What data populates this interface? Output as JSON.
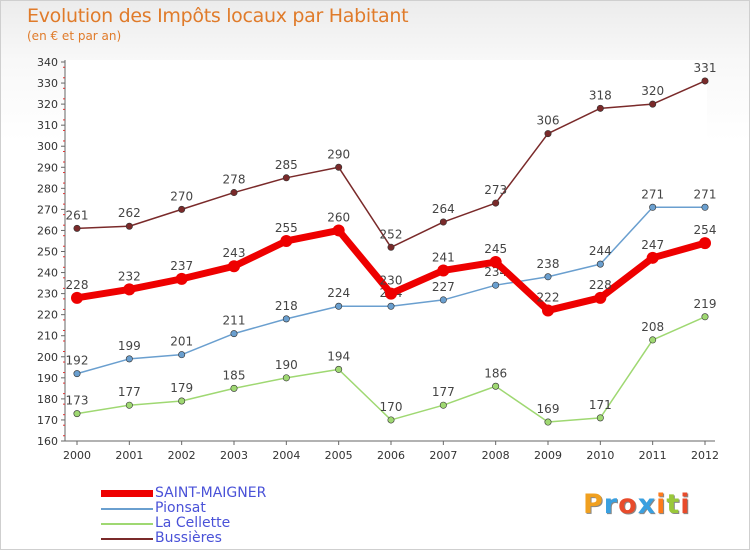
{
  "title": "Evolution des Impôts locaux par Habitant",
  "subtitle": "(en € et par an)",
  "logo_text": "Proxiti",
  "chart_data": {
    "type": "line",
    "title": "Evolution des Impôts locaux par Habitant",
    "subtitle": "(en € et par an)",
    "xlabel": "",
    "ylabel": "",
    "x": [
      "2000",
      "2001",
      "2002",
      "2003",
      "2004",
      "2005",
      "2006",
      "2007",
      "2008",
      "2009",
      "2010",
      "2011",
      "2012"
    ],
    "ylim": [
      160,
      340
    ],
    "yticks": [
      160,
      170,
      180,
      190,
      200,
      210,
      220,
      230,
      240,
      250,
      260,
      270,
      280,
      290,
      300,
      310,
      320,
      330,
      340
    ],
    "grid": false,
    "legend_position": "bottom-left",
    "series": [
      {
        "name": "SAINT-MAIGNER",
        "color": "#ee0000",
        "values": [
          228,
          232,
          237,
          243,
          255,
          260,
          230,
          241,
          245,
          222,
          228,
          247,
          254
        ]
      },
      {
        "name": "Pionsat",
        "color": "#6a9fcf",
        "values": [
          192,
          199,
          201,
          211,
          218,
          224,
          224,
          227,
          234,
          238,
          244,
          271,
          271
        ]
      },
      {
        "name": "La Cellette",
        "color": "#9fd872",
        "values": [
          173,
          177,
          179,
          185,
          190,
          194,
          170,
          177,
          186,
          169,
          171,
          208,
          219
        ]
      },
      {
        "name": "Bussières",
        "color": "#7a2a2a",
        "values": [
          261,
          262,
          270,
          278,
          285,
          290,
          252,
          264,
          273,
          306,
          318,
          320,
          331
        ]
      }
    ]
  }
}
